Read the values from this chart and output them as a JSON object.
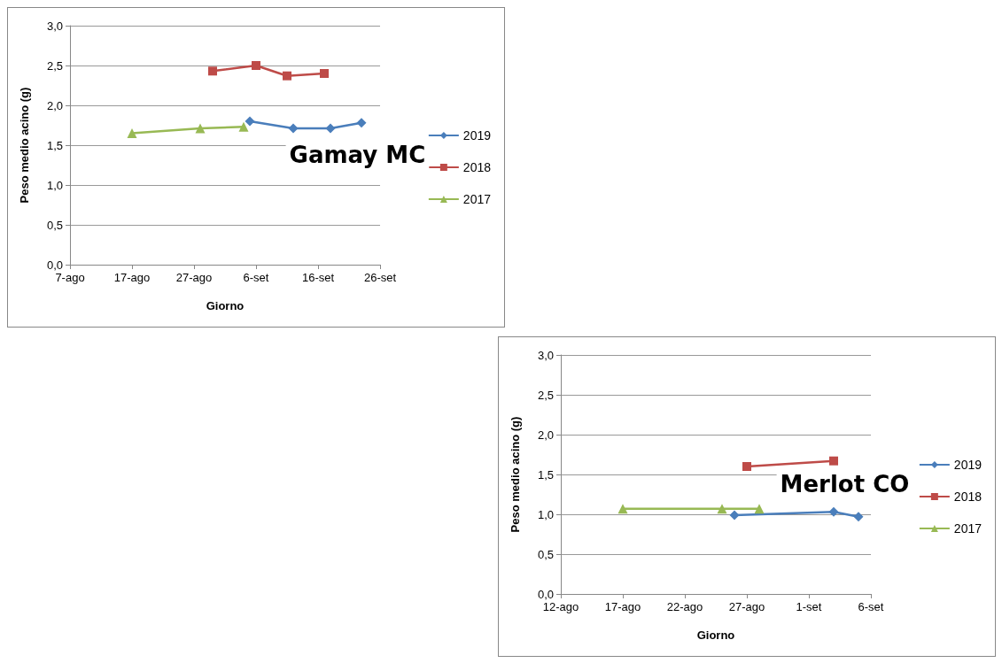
{
  "chart_data": [
    {
      "type": "line",
      "title": "Gamay MC",
      "xlabel": "Giorno",
      "ylabel": "Peso medio acino (g)",
      "xlim": [
        "--08-07",
        "--09-26"
      ],
      "xticks": [
        {
          "value": "--08-07",
          "label": "7-ago"
        },
        {
          "value": "--08-17",
          "label": "17-ago"
        },
        {
          "value": "--08-27",
          "label": "27-ago"
        },
        {
          "value": "--09-06",
          "label": "6-set"
        },
        {
          "value": "--09-16",
          "label": "16-set"
        },
        {
          "value": "--09-26",
          "label": "26-set"
        }
      ],
      "ylim": [
        0,
        3
      ],
      "yticks": [
        {
          "value": 0,
          "label": "0,0"
        },
        {
          "value": 0.5,
          "label": "0,5"
        },
        {
          "value": 1,
          "label": "1,0"
        },
        {
          "value": 1.5,
          "label": "1,5"
        },
        {
          "value": 2,
          "label": "2,0"
        },
        {
          "value": 2.5,
          "label": "2,5"
        },
        {
          "value": 3,
          "label": "3,0"
        }
      ],
      "grid": "y",
      "legend": "right",
      "series": [
        {
          "name": "2019",
          "color": "#4a7ebb",
          "marker": "diamond",
          "x": [
            "--09-05",
            "--09-12",
            "--09-18",
            "--09-23"
          ],
          "values": [
            1.8,
            1.71,
            1.71,
            1.78
          ]
        },
        {
          "name": "2018",
          "color": "#be4b48",
          "marker": "square",
          "x": [
            "--08-30",
            "--09-06",
            "--09-11",
            "--09-17"
          ],
          "values": [
            2.43,
            2.5,
            2.37,
            2.4
          ]
        },
        {
          "name": "2017",
          "color": "#98b954",
          "marker": "triangle",
          "x": [
            "--08-17",
            "--08-28",
            "--09-04"
          ],
          "values": [
            1.65,
            1.71,
            1.73
          ]
        }
      ]
    },
    {
      "type": "line",
      "title": "Merlot CO",
      "xlabel": "Giorno",
      "ylabel": "Peso medio acino (g)",
      "xlim": [
        "--08-12",
        "--09-06"
      ],
      "xticks": [
        {
          "value": "--08-12",
          "label": "12-ago"
        },
        {
          "value": "--08-17",
          "label": "17-ago"
        },
        {
          "value": "--08-22",
          "label": "22-ago"
        },
        {
          "value": "--08-27",
          "label": "27-ago"
        },
        {
          "value": "--09-01",
          "label": "1-set"
        },
        {
          "value": "--09-06",
          "label": "6-set"
        }
      ],
      "ylim": [
        0,
        3
      ],
      "yticks": [
        {
          "value": 0,
          "label": "0,0"
        },
        {
          "value": 0.5,
          "label": "0,5"
        },
        {
          "value": 1,
          "label": "1,0"
        },
        {
          "value": 1.5,
          "label": "1,5"
        },
        {
          "value": 2,
          "label": "2,0"
        },
        {
          "value": 2.5,
          "label": "2,5"
        },
        {
          "value": 3,
          "label": "3,0"
        }
      ],
      "grid": "y",
      "legend": "right",
      "series": [
        {
          "name": "2019",
          "color": "#4a7ebb",
          "marker": "diamond",
          "x": [
            "--08-26",
            "--09-03",
            "--09-05"
          ],
          "values": [
            0.99,
            1.03,
            0.97
          ]
        },
        {
          "name": "2018",
          "color": "#be4b48",
          "marker": "square",
          "x": [
            "--08-27",
            "--09-03"
          ],
          "values": [
            1.6,
            1.67
          ]
        },
        {
          "name": "2017",
          "color": "#98b954",
          "marker": "triangle",
          "x": [
            "--08-17",
            "--08-25",
            "--08-28"
          ],
          "values": [
            1.07,
            1.07,
            1.07
          ]
        }
      ]
    }
  ]
}
